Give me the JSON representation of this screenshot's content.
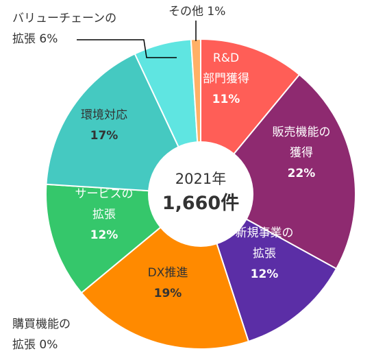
{
  "chart_data": {
    "type": "pie",
    "center_label": {
      "year": "2021年",
      "count": "1,660件"
    },
    "slices": [
      {
        "label": [
          "R&D",
          "部門獲得"
        ],
        "pct_label": "11%",
        "value": 11,
        "color": "#ff5e57",
        "text_color": "#ffffff"
      },
      {
        "label": [
          "販売機能の",
          "獲得"
        ],
        "pct_label": "22%",
        "value": 22,
        "color": "#8e2a70",
        "text_color": "#ffffff"
      },
      {
        "label": [
          "新規事業の",
          "拡張"
        ],
        "pct_label": "12%",
        "value": 12,
        "color": "#5b2ea6",
        "text_color": "#ffffff"
      },
      {
        "label": [
          "購買機能の",
          "拡張 0%"
        ],
        "pct_label": "0%",
        "value": 0,
        "color": "#999999",
        "text_color": "#333333",
        "outside": true
      },
      {
        "label": [
          "DX推進"
        ],
        "pct_label": "19%",
        "value": 19,
        "color": "#ff8a00",
        "text_color": "#333333"
      },
      {
        "label": [
          "サービスの",
          "拡張"
        ],
        "pct_label": "12%",
        "value": 12,
        "color": "#35c76b",
        "text_color": "#ffffff"
      },
      {
        "label": [
          "環境対応"
        ],
        "pct_label": "17%",
        "value": 17,
        "color": "#45c9c1",
        "text_color": "#333333"
      },
      {
        "label": [
          "バリューチェーンの",
          "拡張 6%"
        ],
        "pct_label": "6%",
        "value": 6,
        "color": "#5fe5e1",
        "text_color": "#333333",
        "outside": true
      },
      {
        "label": [
          "その他 1%"
        ],
        "pct_label": "1%",
        "value": 1,
        "color": "#ffb066",
        "text_color": "#333333",
        "outside": true
      }
    ]
  }
}
